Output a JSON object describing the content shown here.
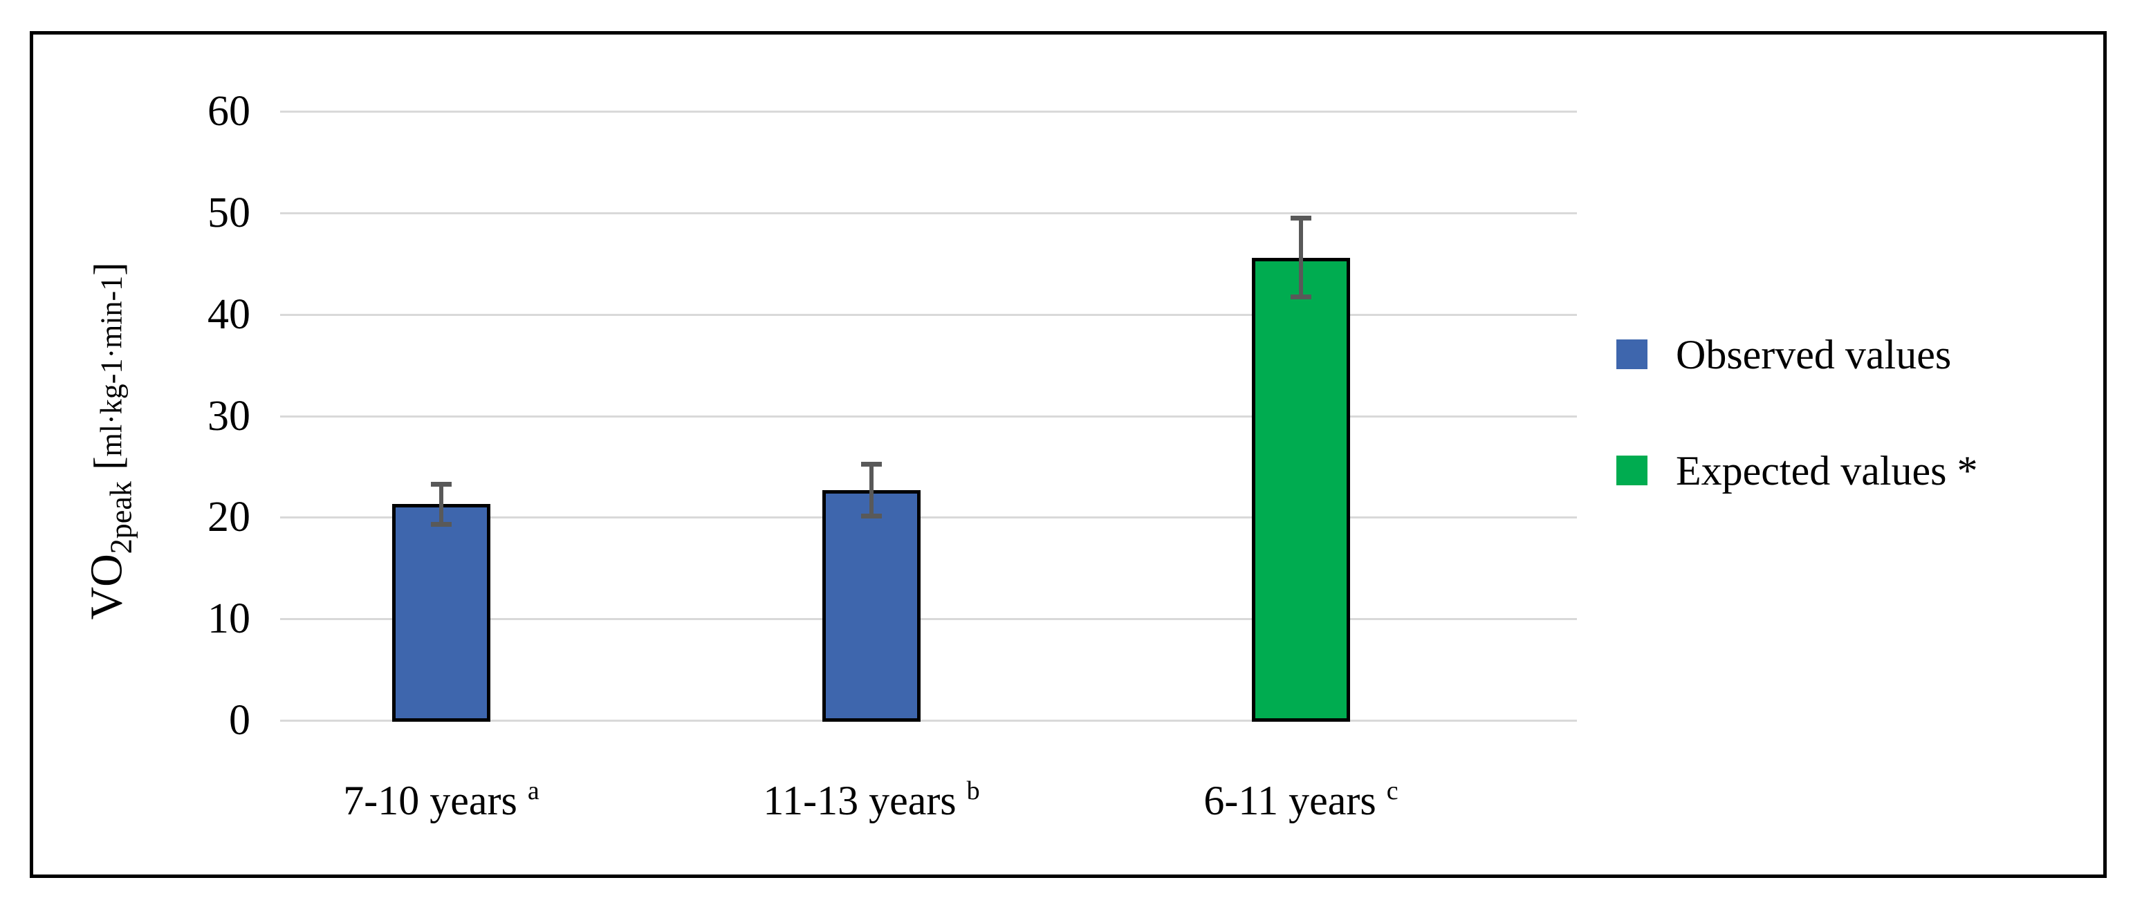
{
  "figure": {
    "background": "#FFFFFF",
    "border_color": "#000000"
  },
  "y_axis": {
    "title_main": "VO",
    "title_sub": "2peak",
    "bracket_open": "[",
    "title_unit": "ml·kg-1·min-1",
    "bracket_close": "]",
    "tick_labels": [
      "60",
      "50",
      "40",
      "30",
      "20",
      "10",
      "0"
    ]
  },
  "legend": {
    "items": [
      {
        "label": "Observed values",
        "color": "#3E66AD",
        "swatch": "blue-square"
      },
      {
        "label": "Expected values *",
        "color": "#00AC50",
        "swatch": "green-square"
      }
    ]
  },
  "chart_data": {
    "type": "bar",
    "title": "",
    "xlabel": "",
    "ylabel": "VO2peak [ml·kg-1·min-1]",
    "ylim": [
      0,
      60
    ],
    "yticks": [
      0,
      10,
      20,
      30,
      40,
      50,
      60
    ],
    "grid": true,
    "legend_position": "right",
    "categories": [
      "7-10 years",
      "11-13 years",
      "6-11 years"
    ],
    "category_superscripts": [
      "a",
      "b",
      "c"
    ],
    "series": [
      {
        "name": "Observed values",
        "color": "#3E66AD",
        "values": [
          21.3,
          22.7,
          null
        ]
      },
      {
        "name": "Expected values *",
        "color": "#00AC50",
        "values": [
          null,
          null,
          45.6
        ]
      }
    ],
    "bars": [
      {
        "category": "7-10 years",
        "sup": "a",
        "series": "Observed values",
        "value": 21.3,
        "error": 2.0,
        "color": "#3E66AD"
      },
      {
        "category": "11-13 years",
        "sup": "b",
        "series": "Observed values",
        "value": 22.7,
        "error": 2.6,
        "color": "#3E66AD"
      },
      {
        "category": "6-11 years",
        "sup": "c",
        "series": "Expected values *",
        "value": 45.6,
        "error": 3.9,
        "color": "#00AC50"
      }
    ],
    "error_bars": {
      "visible": true,
      "color": "#595959",
      "values": [
        2.0,
        2.6,
        3.9
      ]
    }
  },
  "colors": {
    "gridline": "#D9D9D9",
    "error_bar": "#595959",
    "bar_outline": "#000000",
    "text": "#000000"
  }
}
